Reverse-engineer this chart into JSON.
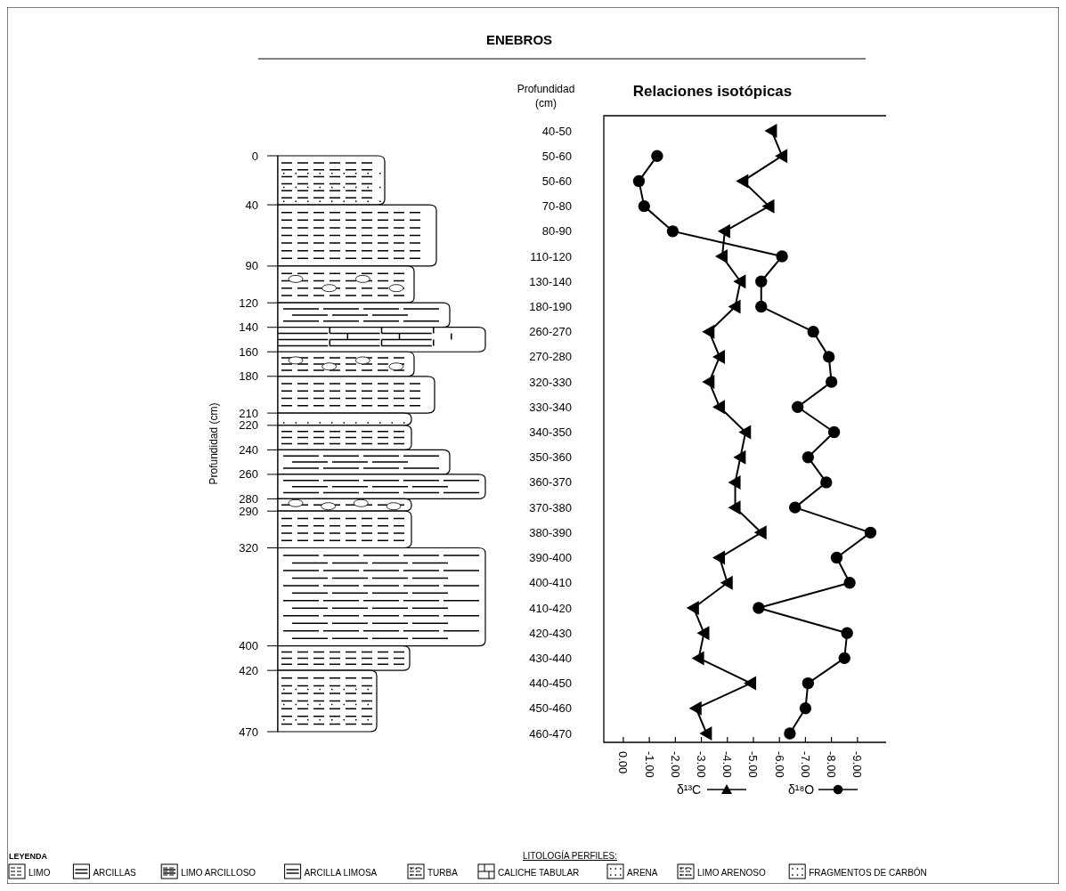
{
  "chart_data": [
    {
      "type": "bar",
      "stacked": true,
      "title": "ENEBROS",
      "ylabel": "Profundidad (cm)",
      "ylim": [
        470,
        0
      ],
      "yticks": [
        0,
        40,
        90,
        120,
        140,
        160,
        180,
        210,
        220,
        240,
        260,
        280,
        290,
        320,
        400,
        420,
        470
      ],
      "tick_labels": "y",
      "categories": [
        null
      ],
      "series": [
        {
          "color": "#ffffff",
          "values": [
            40
          ]
        },
        {
          "color": "#ffffff",
          "values": [
            50
          ]
        },
        {
          "color": "#ffffff",
          "values": [
            30
          ]
        },
        {
          "color": "#ffffff",
          "values": [
            20
          ]
        },
        {
          "color": "#ffffff",
          "values": [
            20
          ]
        },
        {
          "color": "#ffffff",
          "values": [
            20
          ]
        },
        {
          "color": "#ffffff",
          "values": [
            30
          ]
        },
        {
          "color": "#ffffff",
          "values": [
            10
          ]
        },
        {
          "color": "#ffffff",
          "values": [
            20
          ]
        },
        {
          "color": "#ffffff",
          "values": [
            20
          ]
        },
        {
          "color": "#ffffff",
          "values": [
            20
          ]
        },
        {
          "color": "#ffffff",
          "values": [
            10
          ]
        },
        {
          "color": "#ffffff",
          "values": [
            30
          ]
        },
        {
          "color": "#ffffff",
          "values": [
            80
          ]
        },
        {
          "color": "#ffffff",
          "values": [
            20
          ]
        },
        {
          "color": "#ffffff",
          "values": [
            50
          ]
        }
      ],
      "annotations": [
        "LEYENDA",
        "LITOLOGÍA PERFILES:",
        "LIMO",
        "ARCILLAS",
        "LIMO ARCILLOSO",
        "ARCILLA LIMOSA",
        "TURBA",
        "CALICHE TABULAR",
        "ARENA",
        "LIMO ARENOSO",
        "FRAGMENTOS DE CARBÓN"
      ]
    },
    {
      "type": "line",
      "orientation": "horizontal",
      "title": "Relaciones isotópicas",
      "ylabel": "Profundidad (cm)",
      "legend": "bottom",
      "grid": false,
      "categories": [
        "40-50",
        "50-60",
        "50-60",
        "70-80",
        "80-90",
        "110-120",
        "130-140",
        "180-190",
        "260-270",
        "270-280",
        "320-330",
        "330-340",
        "340-350",
        "350-360",
        "360-370",
        "370-380",
        "380-390",
        "390-400",
        "400-410",
        "410-420",
        "420-430",
        "430-440",
        "440-450",
        "450-460",
        "460-470"
      ],
      "xlim": [
        0.75,
        -10.1
      ],
      "xticks": [
        {
          "value": 0,
          "label": "0.00"
        },
        {
          "value": -1,
          "label": "-1.00"
        },
        {
          "value": -2,
          "label": "-2.00"
        },
        {
          "value": -3,
          "label": "-3.00"
        },
        {
          "value": -4,
          "label": "-4.00"
        },
        {
          "value": -5,
          "label": "-5.00"
        },
        {
          "value": -6,
          "label": "-6.00"
        },
        {
          "value": -7,
          "label": "-7.00"
        },
        {
          "value": -8,
          "label": "-8.00"
        },
        {
          "value": -9,
          "label": "-9.00"
        }
      ],
      "series": [
        {
          "name": "δ¹³C",
          "color": "#000000",
          "marker": "triangle",
          "values": [
            -5.7,
            -6.1,
            -4.6,
            -5.6,
            -3.9,
            -3.8,
            -4.5,
            -4.3,
            -3.3,
            -3.7,
            -3.3,
            -3.7,
            -4.7,
            -4.5,
            -4.3,
            -4.3,
            -5.3,
            -3.7,
            -4.0,
            -2.7,
            -3.1,
            -2.9,
            -4.9,
            -2.8,
            -3.2
          ]
        },
        {
          "name": "δ¹⁸O",
          "color": "#000000",
          "marker": "circle",
          "values": [
            null,
            -1.3,
            -0.6,
            -0.8,
            -1.9,
            -6.1,
            -5.3,
            -5.3,
            -7.3,
            -7.9,
            -8.0,
            -6.7,
            -8.1,
            -7.1,
            -7.8,
            -6.6,
            -9.5,
            -8.2,
            -8.7,
            -5.2,
            -8.6,
            -8.5,
            -7.1,
            -7.0,
            -6.4
          ]
        }
      ]
    }
  ]
}
